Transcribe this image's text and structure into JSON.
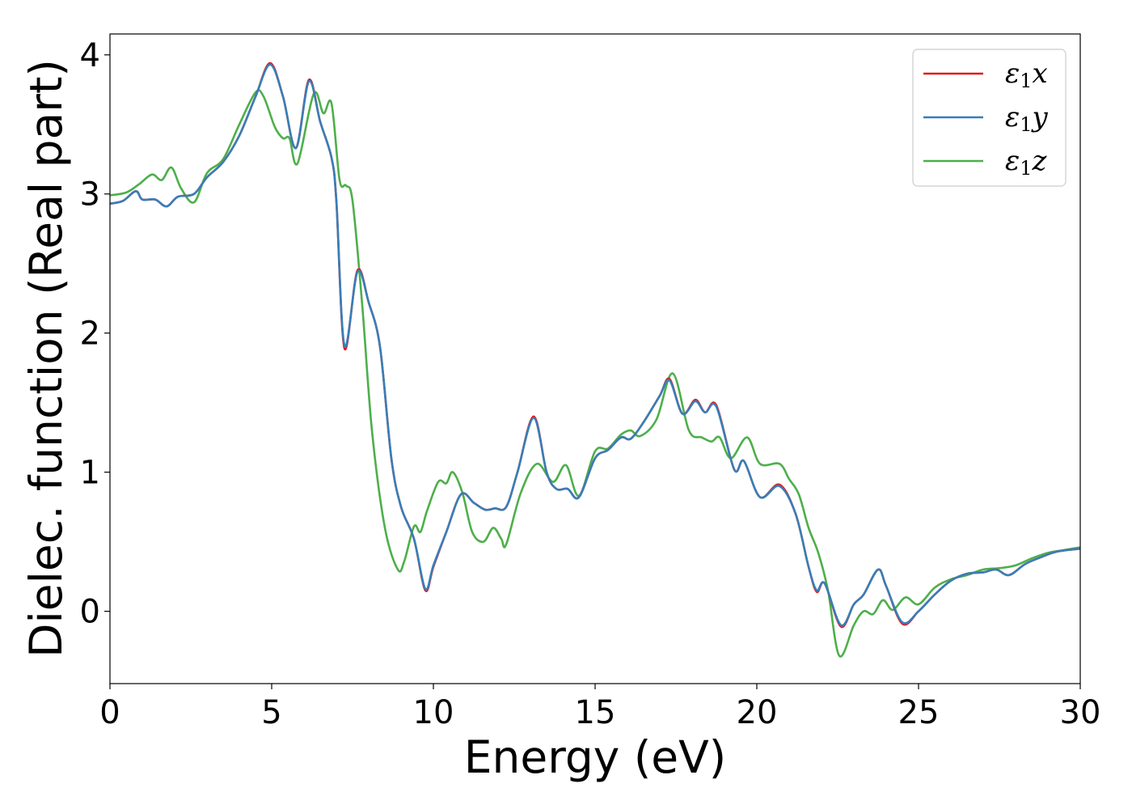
{
  "chart_data": {
    "type": "line",
    "title": "",
    "xlabel": "Energy (eV)",
    "ylabel": "Dielec. function (Real part)",
    "xlim": [
      0,
      30
    ],
    "ylim": [
      -0.52,
      4.15
    ],
    "xticks": [
      0,
      5,
      10,
      15,
      20,
      25,
      30
    ],
    "yticks": [
      0,
      1,
      2,
      3,
      4
    ],
    "grid": false,
    "legend_position": "top-right",
    "series": [
      {
        "name": "ε1x",
        "label_main": "ε",
        "label_sub": "1",
        "label_tail": "x",
        "color": "#e41a1c",
        "points": [
          [
            0,
            2.93
          ],
          [
            0.4,
            2.95
          ],
          [
            0.8,
            3.02
          ],
          [
            1.0,
            2.96
          ],
          [
            1.4,
            2.96
          ],
          [
            1.75,
            2.91
          ],
          [
            2.1,
            2.98
          ],
          [
            2.6,
            3.0
          ],
          [
            3.0,
            3.12
          ],
          [
            3.5,
            3.23
          ],
          [
            4.0,
            3.42
          ],
          [
            4.5,
            3.7
          ],
          [
            4.95,
            3.94
          ],
          [
            5.35,
            3.7
          ],
          [
            5.75,
            3.33
          ],
          [
            6.15,
            3.82
          ],
          [
            6.5,
            3.52
          ],
          [
            6.85,
            3.26
          ],
          [
            7.0,
            2.95
          ],
          [
            7.25,
            1.89
          ],
          [
            7.65,
            2.45
          ],
          [
            8.0,
            2.22
          ],
          [
            8.35,
            1.9
          ],
          [
            8.7,
            1.1
          ],
          [
            9.0,
            0.75
          ],
          [
            9.4,
            0.52
          ],
          [
            9.75,
            0.15
          ],
          [
            10.0,
            0.32
          ],
          [
            10.4,
            0.57
          ],
          [
            10.85,
            0.84
          ],
          [
            11.25,
            0.78
          ],
          [
            11.6,
            0.73
          ],
          [
            11.9,
            0.74
          ],
          [
            12.25,
            0.75
          ],
          [
            12.6,
            1.0
          ],
          [
            13.1,
            1.4
          ],
          [
            13.5,
            1.0
          ],
          [
            13.8,
            0.88
          ],
          [
            14.15,
            0.88
          ],
          [
            14.5,
            0.82
          ],
          [
            15.0,
            1.1
          ],
          [
            15.4,
            1.16
          ],
          [
            15.8,
            1.25
          ],
          [
            16.1,
            1.24
          ],
          [
            16.5,
            1.36
          ],
          [
            17.0,
            1.55
          ],
          [
            17.3,
            1.67
          ],
          [
            17.7,
            1.42
          ],
          [
            18.1,
            1.52
          ],
          [
            18.4,
            1.43
          ],
          [
            18.75,
            1.48
          ],
          [
            19.3,
            1.02
          ],
          [
            19.6,
            1.08
          ],
          [
            20.1,
            0.82
          ],
          [
            20.7,
            0.91
          ],
          [
            21.2,
            0.7
          ],
          [
            21.6,
            0.32
          ],
          [
            21.85,
            0.14
          ],
          [
            22.1,
            0.2
          ],
          [
            22.6,
            -0.11
          ],
          [
            23.0,
            0.05
          ],
          [
            23.3,
            0.12
          ],
          [
            23.75,
            0.3
          ],
          [
            24.0,
            0.18
          ],
          [
            24.5,
            -0.09
          ],
          [
            25.0,
            0.0
          ],
          [
            25.5,
            0.12
          ],
          [
            26.0,
            0.22
          ],
          [
            26.5,
            0.27
          ],
          [
            27.0,
            0.28
          ],
          [
            27.4,
            0.3
          ],
          [
            27.8,
            0.26
          ],
          [
            28.3,
            0.34
          ],
          [
            28.8,
            0.39
          ],
          [
            29.3,
            0.43
          ],
          [
            30.0,
            0.45
          ]
        ]
      },
      {
        "name": "ε1y",
        "label_main": "ε",
        "label_sub": "1",
        "label_tail": "y",
        "color": "#377eb8",
        "points": [
          [
            0,
            2.93
          ],
          [
            0.4,
            2.95
          ],
          [
            0.8,
            3.02
          ],
          [
            1.0,
            2.96
          ],
          [
            1.4,
            2.96
          ],
          [
            1.75,
            2.91
          ],
          [
            2.1,
            2.98
          ],
          [
            2.6,
            3.0
          ],
          [
            3.0,
            3.12
          ],
          [
            3.5,
            3.23
          ],
          [
            4.0,
            3.42
          ],
          [
            4.5,
            3.7
          ],
          [
            4.95,
            3.93
          ],
          [
            5.35,
            3.7
          ],
          [
            5.75,
            3.33
          ],
          [
            6.15,
            3.81
          ],
          [
            6.5,
            3.52
          ],
          [
            6.85,
            3.26
          ],
          [
            7.0,
            2.95
          ],
          [
            7.25,
            1.91
          ],
          [
            7.65,
            2.44
          ],
          [
            8.0,
            2.22
          ],
          [
            8.35,
            1.9
          ],
          [
            8.7,
            1.1
          ],
          [
            9.0,
            0.75
          ],
          [
            9.4,
            0.52
          ],
          [
            9.75,
            0.16
          ],
          [
            10.0,
            0.33
          ],
          [
            10.4,
            0.57
          ],
          [
            10.85,
            0.84
          ],
          [
            11.25,
            0.78
          ],
          [
            11.6,
            0.73
          ],
          [
            11.9,
            0.74
          ],
          [
            12.25,
            0.75
          ],
          [
            12.6,
            1.0
          ],
          [
            13.1,
            1.39
          ],
          [
            13.5,
            1.0
          ],
          [
            13.8,
            0.88
          ],
          [
            14.15,
            0.88
          ],
          [
            14.5,
            0.82
          ],
          [
            15.0,
            1.1
          ],
          [
            15.4,
            1.16
          ],
          [
            15.8,
            1.25
          ],
          [
            16.1,
            1.24
          ],
          [
            16.5,
            1.36
          ],
          [
            17.0,
            1.55
          ],
          [
            17.3,
            1.66
          ],
          [
            17.7,
            1.42
          ],
          [
            18.1,
            1.51
          ],
          [
            18.4,
            1.43
          ],
          [
            18.75,
            1.47
          ],
          [
            19.3,
            1.02
          ],
          [
            19.6,
            1.08
          ],
          [
            20.1,
            0.82
          ],
          [
            20.7,
            0.9
          ],
          [
            21.2,
            0.7
          ],
          [
            21.6,
            0.32
          ],
          [
            21.85,
            0.15
          ],
          [
            22.1,
            0.2
          ],
          [
            22.6,
            -0.1
          ],
          [
            23.0,
            0.05
          ],
          [
            23.3,
            0.12
          ],
          [
            23.75,
            0.3
          ],
          [
            24.0,
            0.18
          ],
          [
            24.5,
            -0.08
          ],
          [
            25.0,
            0.0
          ],
          [
            25.5,
            0.12
          ],
          [
            26.0,
            0.22
          ],
          [
            26.5,
            0.27
          ],
          [
            27.0,
            0.28
          ],
          [
            27.4,
            0.3
          ],
          [
            27.8,
            0.26
          ],
          [
            28.3,
            0.34
          ],
          [
            28.8,
            0.39
          ],
          [
            29.3,
            0.43
          ],
          [
            30.0,
            0.45
          ]
        ]
      },
      {
        "name": "ε1z",
        "label_main": "ε",
        "label_sub": "1",
        "label_tail": "z",
        "color": "#4daf4a",
        "points": [
          [
            0,
            2.99
          ],
          [
            0.5,
            3.01
          ],
          [
            0.9,
            3.07
          ],
          [
            1.3,
            3.14
          ],
          [
            1.6,
            3.1
          ],
          [
            1.9,
            3.19
          ],
          [
            2.2,
            3.04
          ],
          [
            2.6,
            2.94
          ],
          [
            3.0,
            3.15
          ],
          [
            3.5,
            3.25
          ],
          [
            4.0,
            3.5
          ],
          [
            4.5,
            3.73
          ],
          [
            4.75,
            3.7
          ],
          [
            5.1,
            3.48
          ],
          [
            5.35,
            3.4
          ],
          [
            5.55,
            3.4
          ],
          [
            5.8,
            3.22
          ],
          [
            6.3,
            3.72
          ],
          [
            6.6,
            3.58
          ],
          [
            6.85,
            3.65
          ],
          [
            7.1,
            3.1
          ],
          [
            7.3,
            3.06
          ],
          [
            7.5,
            2.95
          ],
          [
            7.8,
            2.2
          ],
          [
            8.1,
            1.3
          ],
          [
            8.5,
            0.6
          ],
          [
            8.9,
            0.3
          ],
          [
            9.1,
            0.36
          ],
          [
            9.4,
            0.61
          ],
          [
            9.6,
            0.57
          ],
          [
            9.8,
            0.72
          ],
          [
            10.15,
            0.93
          ],
          [
            10.4,
            0.92
          ],
          [
            10.6,
            1.0
          ],
          [
            10.9,
            0.85
          ],
          [
            11.2,
            0.57
          ],
          [
            11.55,
            0.5
          ],
          [
            11.85,
            0.6
          ],
          [
            12.1,
            0.52
          ],
          [
            12.25,
            0.48
          ],
          [
            12.7,
            0.85
          ],
          [
            13.2,
            1.06
          ],
          [
            13.7,
            0.93
          ],
          [
            14.1,
            1.05
          ],
          [
            14.5,
            0.83
          ],
          [
            15.0,
            1.15
          ],
          [
            15.4,
            1.17
          ],
          [
            15.8,
            1.27
          ],
          [
            16.1,
            1.3
          ],
          [
            16.4,
            1.26
          ],
          [
            16.9,
            1.38
          ],
          [
            17.4,
            1.71
          ],
          [
            17.9,
            1.3
          ],
          [
            18.3,
            1.25
          ],
          [
            18.6,
            1.22
          ],
          [
            18.85,
            1.25
          ],
          [
            19.2,
            1.1
          ],
          [
            19.7,
            1.25
          ],
          [
            20.1,
            1.06
          ],
          [
            20.7,
            1.06
          ],
          [
            21.0,
            0.95
          ],
          [
            21.3,
            0.84
          ],
          [
            21.6,
            0.6
          ],
          [
            21.9,
            0.42
          ],
          [
            22.2,
            0.15
          ],
          [
            22.55,
            -0.32
          ],
          [
            23.0,
            -0.1
          ],
          [
            23.3,
            0.0
          ],
          [
            23.6,
            -0.02
          ],
          [
            23.9,
            0.08
          ],
          [
            24.2,
            0.01
          ],
          [
            24.6,
            0.1
          ],
          [
            25.0,
            0.05
          ],
          [
            25.5,
            0.17
          ],
          [
            26.0,
            0.23
          ],
          [
            26.5,
            0.26
          ],
          [
            27.0,
            0.3
          ],
          [
            27.5,
            0.31
          ],
          [
            28.0,
            0.33
          ],
          [
            28.5,
            0.38
          ],
          [
            29.0,
            0.42
          ],
          [
            29.5,
            0.44
          ],
          [
            30.0,
            0.46
          ]
        ]
      }
    ]
  }
}
